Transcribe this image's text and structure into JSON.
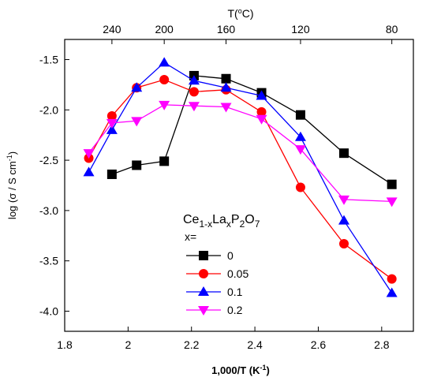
{
  "chart_data": {
    "type": "line",
    "xlabel": "1,000/T (K",
    "xlabel_sup": "-1",
    "xlabel_end": ")",
    "ylabel": "log (σ / S cm",
    "ylabel_sup": "-1",
    "ylabel_end": ")",
    "top_label": "T(",
    "top_label_sup": "o",
    "top_label_end": "C)",
    "xlim": [
      1.8,
      2.9
    ],
    "ylim": [
      -4.2,
      -1.3
    ],
    "x_ticks": [
      "1.8",
      "2",
      "2.2",
      "2.4",
      "2.6",
      "2.8"
    ],
    "y_ticks": [
      "-1.5",
      "-2.0",
      "-2.5",
      "-3.0",
      "-3.5",
      "-4.0"
    ],
    "top_ticks": [
      {
        "label": "240",
        "value": 1.949
      },
      {
        "label": "200",
        "value": 2.114
      },
      {
        "label": "160",
        "value": 2.309
      },
      {
        "label": "120",
        "value": 2.544
      },
      {
        "label": "80",
        "value": 2.832
      }
    ],
    "legend": {
      "formula": [
        "Ce",
        "1-x",
        "La",
        "x",
        "P",
        "2",
        "O",
        "7"
      ],
      "title": "x=",
      "placement": "lower-center"
    },
    "series": [
      {
        "name": "0",
        "color": "#000000",
        "marker": "square",
        "x": [
          1.949,
          2.027,
          2.114,
          2.208,
          2.309,
          2.421,
          2.544,
          2.681,
          2.832
        ],
        "y": [
          -2.64,
          -2.55,
          -2.51,
          -1.66,
          -1.69,
          -1.83,
          -2.05,
          -2.43,
          -2.74
        ]
      },
      {
        "name": "0.05",
        "color": "#ff0000",
        "marker": "circle",
        "x": [
          1.876,
          1.949,
          2.027,
          2.114,
          2.208,
          2.309,
          2.421,
          2.544,
          2.681,
          2.832
        ],
        "y": [
          -2.48,
          -2.06,
          -1.78,
          -1.7,
          -1.82,
          -1.8,
          -2.02,
          -2.77,
          -3.33,
          -3.68
        ]
      },
      {
        "name": "0.1",
        "color": "#0000ff",
        "marker": "triangle-up",
        "x": [
          1.876,
          1.949,
          2.027,
          2.114,
          2.208,
          2.309,
          2.421,
          2.544,
          2.681,
          2.832
        ],
        "y": [
          -2.62,
          -2.2,
          -1.78,
          -1.53,
          -1.71,
          -1.78,
          -1.86,
          -2.27,
          -3.1,
          -3.82
        ]
      },
      {
        "name": "0.2",
        "color": "#ff00ff",
        "marker": "triangle-down",
        "x": [
          1.876,
          1.949,
          2.027,
          2.114,
          2.208,
          2.309,
          2.421,
          2.544,
          2.681,
          2.832
        ],
        "y": [
          -2.43,
          -2.13,
          -2.11,
          -1.95,
          -1.96,
          -1.97,
          -2.09,
          -2.39,
          -2.89,
          -2.91
        ]
      }
    ]
  }
}
